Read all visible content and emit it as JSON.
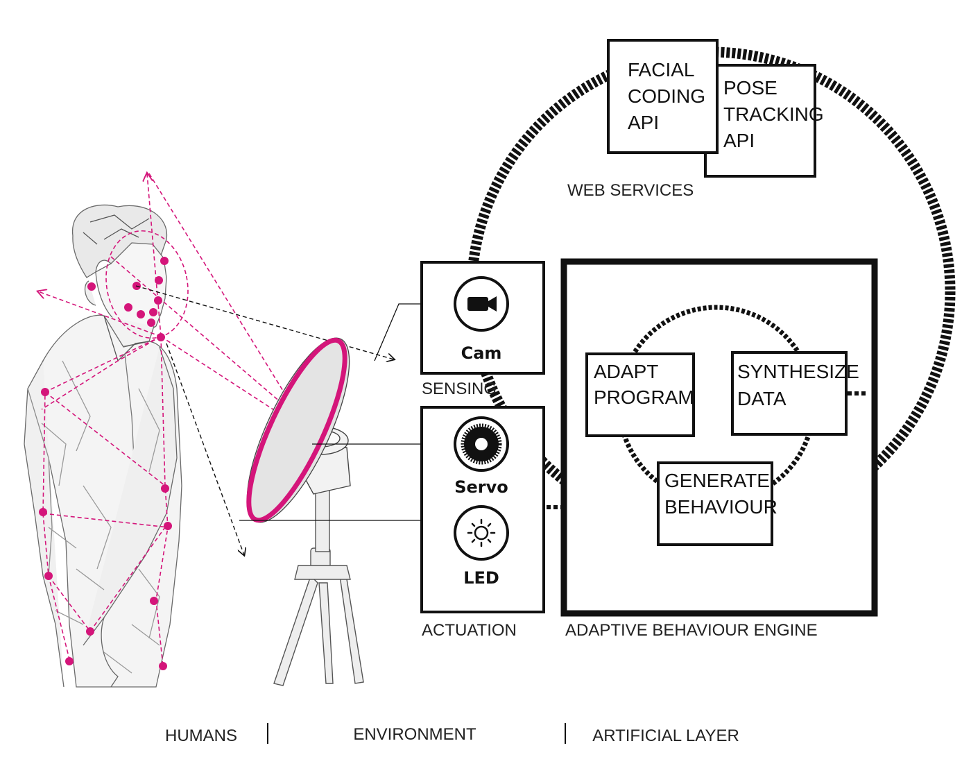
{
  "web_services": {
    "label": "WEB SERVICES",
    "facial_api": [
      "FACIAL",
      "CODING",
      "API"
    ],
    "pose_api": [
      "POSE",
      "TRACKING",
      "API"
    ]
  },
  "sensing": {
    "label": "SENSING",
    "cam_label": "Cam",
    "cam_icon": "video-camera-icon"
  },
  "actuation": {
    "label": "ACTUATION",
    "servo_label": "Servo",
    "servo_icon": "gear-icon",
    "led_label": "LED",
    "led_icon": "sun-icon"
  },
  "engine": {
    "label": "ADAPTIVE BEHAVIOUR ENGINE",
    "adapt": [
      "ADAPT",
      "PROGRAM"
    ],
    "synth": [
      "SYNTHESIZE",
      "DATA"
    ],
    "generate": [
      "GENERATE",
      "BEHAVIOUR"
    ]
  },
  "layers": {
    "humans": "HUMANS",
    "environment": "ENVIRONMENT",
    "artificial": "ARTIFICIAL LAYER"
  },
  "colors": {
    "accent": "#d4157a",
    "ink": "#111111"
  }
}
